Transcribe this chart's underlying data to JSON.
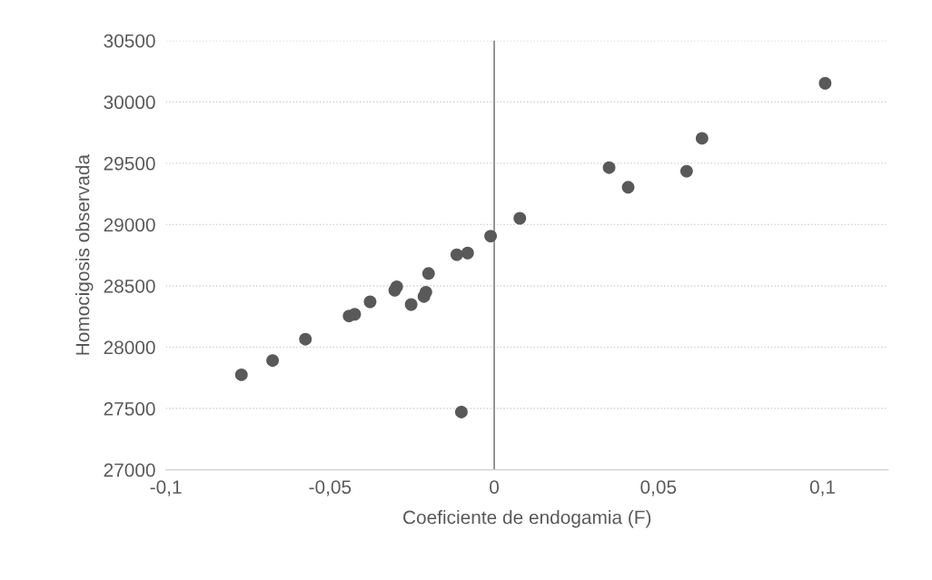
{
  "chart_data": {
    "type": "scatter",
    "xlabel": "Coeficiente de endogamia (F)",
    "ylabel": "Homocigosis observada",
    "x": [
      -0.077,
      -0.0675,
      -0.0575,
      -0.0442,
      -0.0425,
      -0.0378,
      -0.0303,
      -0.0297,
      -0.0253,
      -0.0214,
      -0.0208,
      -0.02,
      -0.0114,
      -0.0081,
      -0.01,
      -0.0011,
      0.0078,
      0.035,
      0.0408,
      0.0586,
      0.0633,
      0.1008
    ],
    "series": [
      {
        "color": "#595959",
        "values": [
          27775,
          27891,
          28065,
          28254,
          28268,
          28370,
          28464,
          28493,
          28348,
          28413,
          28449,
          28601,
          28754,
          28768,
          27471,
          28906,
          29051,
          29464,
          29304,
          29435,
          29703,
          30152
        ]
      }
    ],
    "xlim": [
      -0.1,
      0.12
    ],
    "ylim": [
      27000,
      30500
    ],
    "xticks": [
      {
        "value": -0.1,
        "label": "-0,1"
      },
      {
        "value": -0.05,
        "label": "-0,05"
      },
      {
        "value": 0,
        "label": "0"
      },
      {
        "value": 0.05,
        "label": "0,05"
      },
      {
        "value": 0.1,
        "label": "0,1"
      }
    ],
    "yticks": [
      27000,
      27500,
      28000,
      28500,
      29000,
      29500,
      30000,
      30500
    ],
    "ref_lines": [
      {
        "axis": "x",
        "value": 0,
        "color": "#808080",
        "line_style": "solid"
      }
    ],
    "grid": "y",
    "marker": "circle",
    "legend": false
  }
}
